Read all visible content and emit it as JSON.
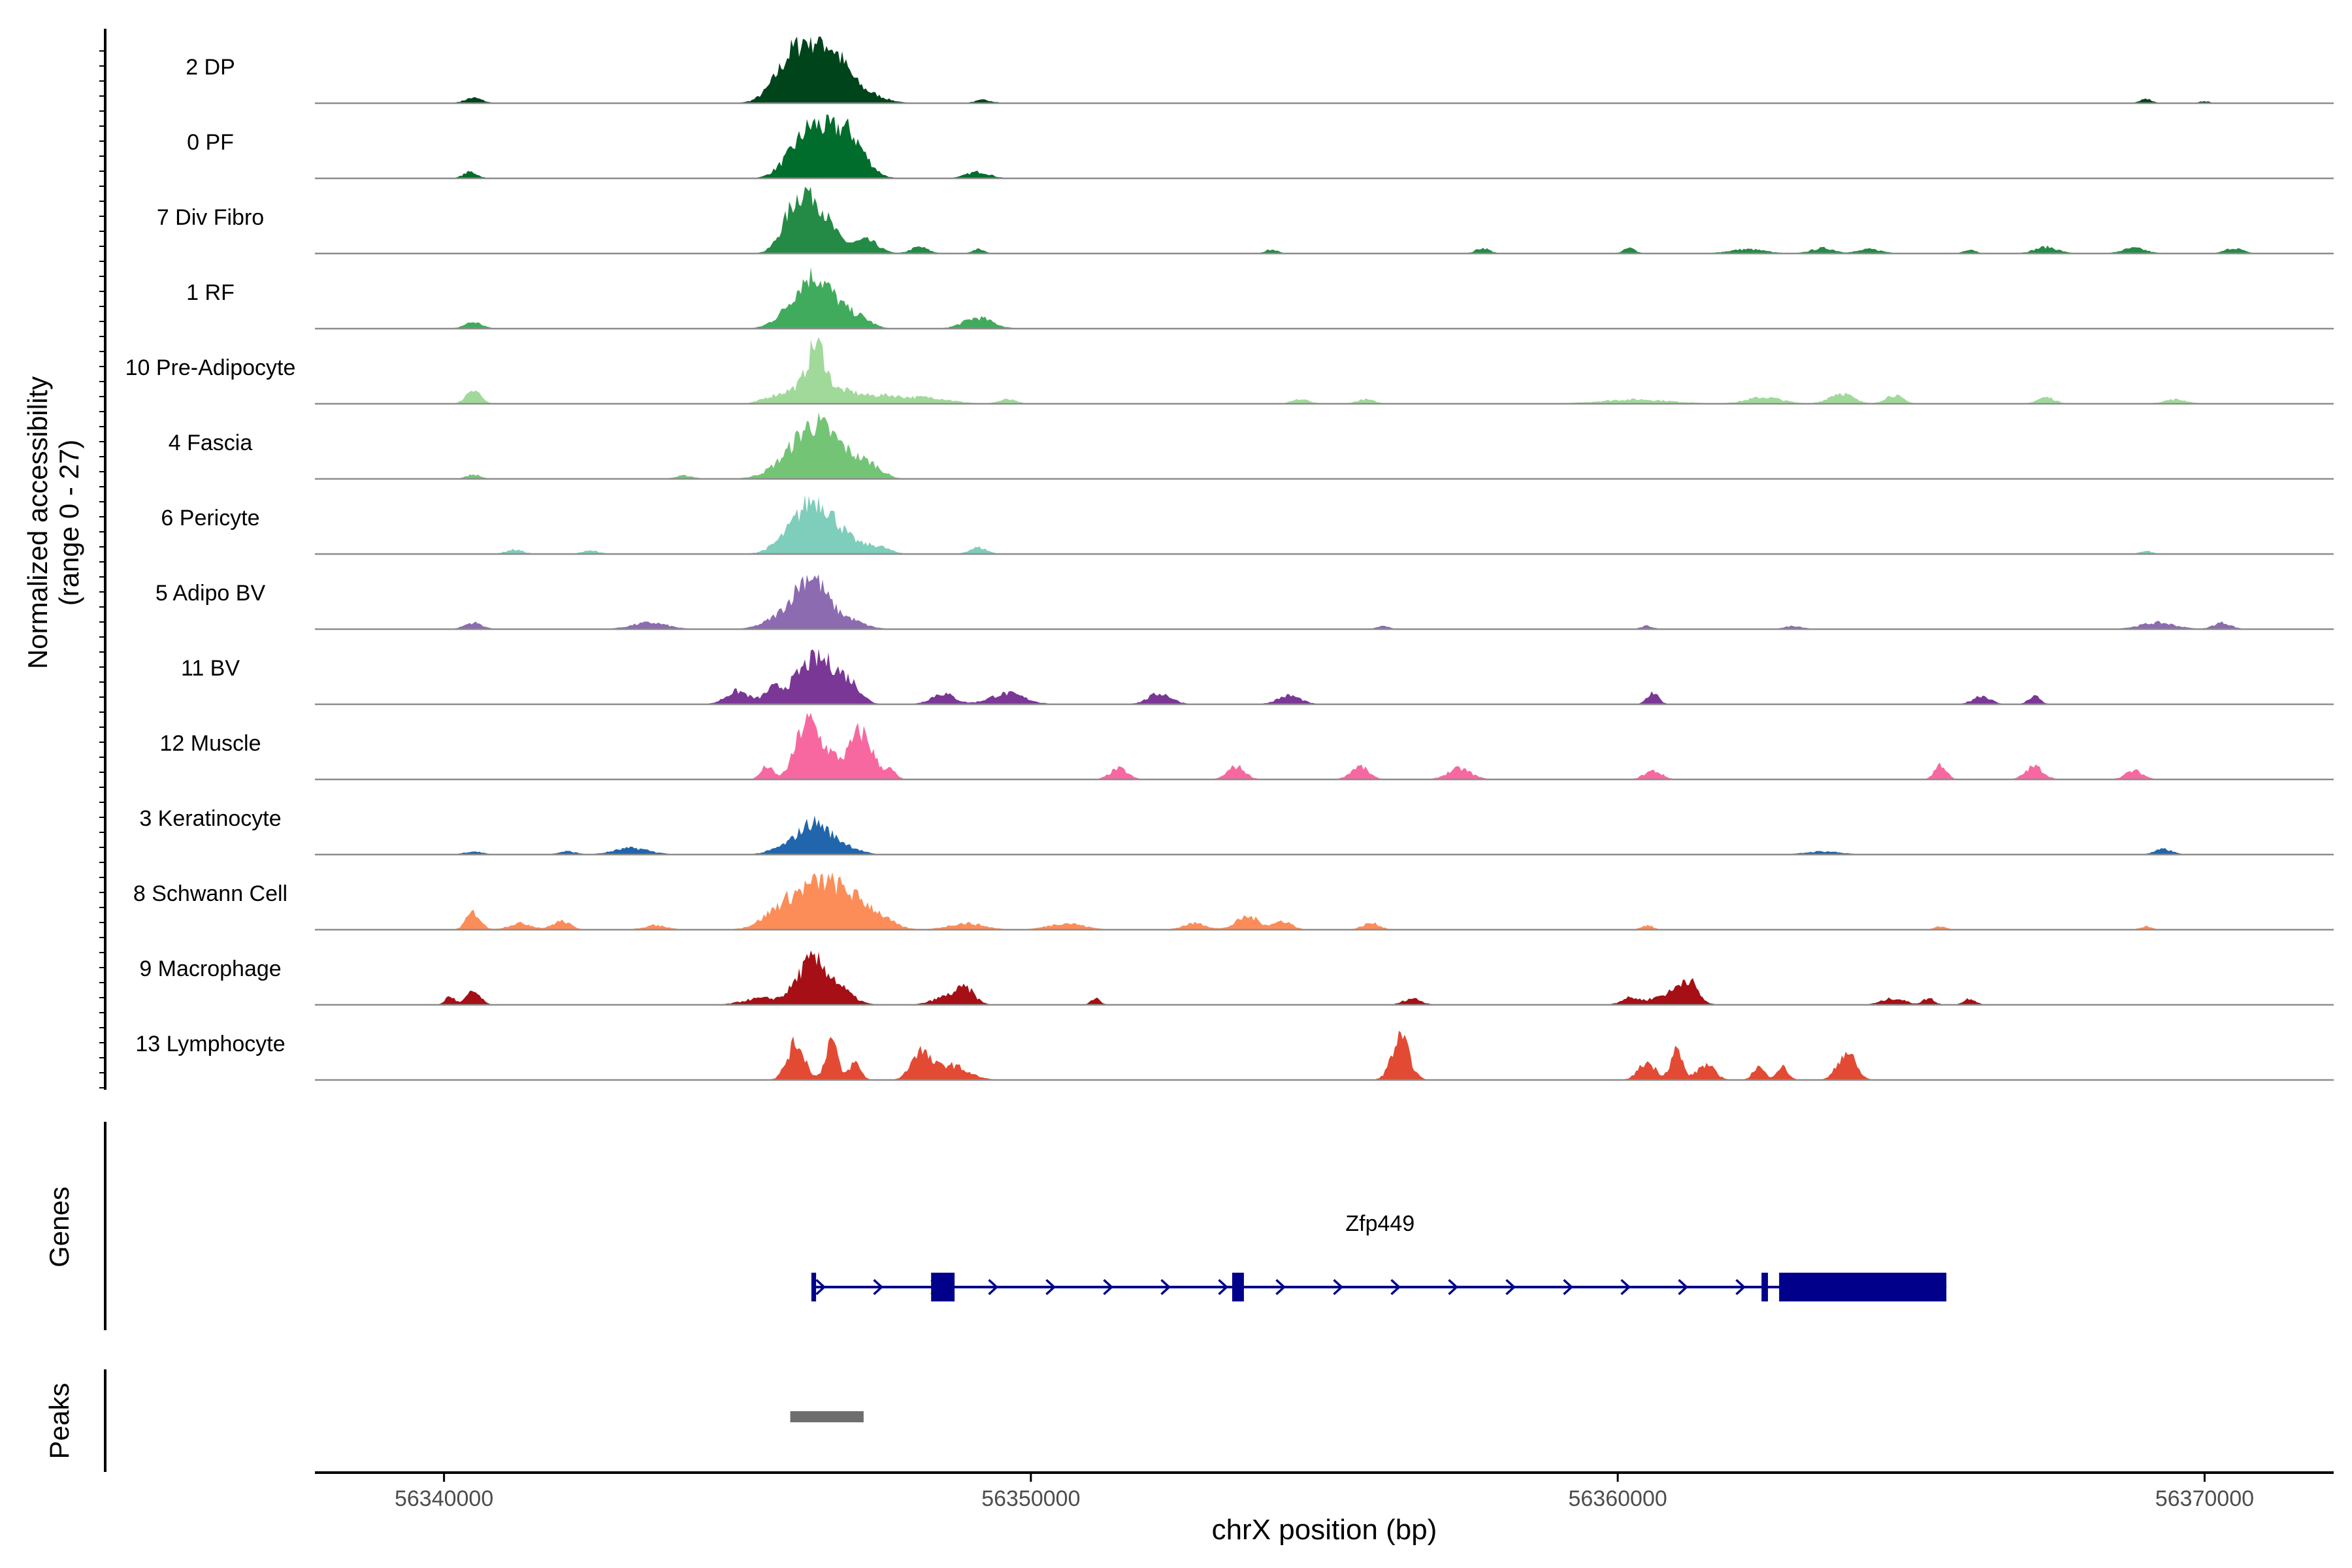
{
  "chart_data": {
    "type": "area",
    "subtype": "genome-browser coverage plot",
    "chromosome": "chrX",
    "xlim": [
      56337800,
      56372200
    ],
    "xlabel": "chrX position (bp)",
    "x_ticks": [
      56340000,
      56350000,
      56360000,
      56370000
    ],
    "x_tick_labels": [
      "56340000",
      "56350000",
      "56360000",
      "56370000"
    ],
    "ylabel_line1": "Normalized accessibility",
    "ylabel_line2": "(range 0 - 27)",
    "ylim": [
      0,
      27
    ],
    "panel_labels": {
      "genes": "Genes",
      "peaks": "Peaks"
    },
    "tracks": [
      {
        "name": "2 DP",
        "color": "#00441b",
        "peaks": [
          [
            56346220,
            27,
            380
          ],
          [
            56346700,
            10,
            250
          ],
          [
            56345800,
            5,
            250
          ],
          [
            56347200,
            4,
            300
          ],
          [
            56340500,
            2.5,
            150
          ],
          [
            56349200,
            1.5,
            150
          ],
          [
            56369000,
            2,
            100
          ],
          [
            56370000,
            1,
            80
          ]
        ]
      },
      {
        "name": "0 PF",
        "color": "#006d2c",
        "peaks": [
          [
            56346300,
            24,
            300
          ],
          [
            56347000,
            12,
            250
          ],
          [
            56346800,
            9,
            200
          ],
          [
            56349100,
            3,
            200
          ],
          [
            56340450,
            3,
            120
          ],
          [
            56345800,
            3,
            200
          ]
        ]
      },
      {
        "name": "7 Div Fibro",
        "color": "#238b45",
        "peaks": [
          [
            56346250,
            26,
            250
          ],
          [
            56345900,
            11,
            200
          ],
          [
            56346700,
            4,
            200
          ],
          [
            56347200,
            6,
            200
          ],
          [
            56348100,
            3,
            150
          ],
          [
            56349100,
            2,
            100
          ],
          [
            56354100,
            2,
            100
          ],
          [
            56357700,
            2.5,
            120
          ],
          [
            56360200,
            2.5,
            100
          ],
          [
            56362200,
            2,
            300
          ],
          [
            56363500,
            2.5,
            200
          ],
          [
            56364300,
            2,
            200
          ],
          [
            56366000,
            2,
            100
          ],
          [
            56367300,
            3,
            200
          ],
          [
            56368800,
            2.5,
            200
          ],
          [
            56370500,
            2.5,
            150
          ]
        ]
      },
      {
        "name": "1 RF",
        "color": "#41ab5d",
        "peaks": [
          [
            56346250,
            23,
            300
          ],
          [
            56346700,
            6,
            250
          ],
          [
            56347100,
            4,
            200
          ],
          [
            56349100,
            5,
            250
          ],
          [
            56340500,
            3,
            150
          ],
          [
            56345700,
            2,
            200
          ]
        ]
      },
      {
        "name": "10 Pre-Adipocyte",
        "color": "#a1d99b",
        "peaks": [
          [
            56346350,
            25,
            150
          ],
          [
            56346000,
            6,
            200
          ],
          [
            56346800,
            6,
            300
          ],
          [
            56340500,
            7,
            120
          ],
          [
            56345600,
            3,
            200
          ],
          [
            56347500,
            3,
            250
          ],
          [
            56348200,
            3,
            400
          ],
          [
            56349600,
            2,
            150
          ],
          [
            56354600,
            2,
            150
          ],
          [
            56355700,
            2,
            150
          ],
          [
            56360300,
            2,
            600
          ],
          [
            56362500,
            3,
            300
          ],
          [
            56363800,
            5,
            200
          ],
          [
            56364700,
            4,
            150
          ],
          [
            56367300,
            3,
            150
          ],
          [
            56369500,
            2,
            200
          ]
        ]
      },
      {
        "name": "4 Fascia",
        "color": "#74c476",
        "peaks": [
          [
            56346300,
            24,
            350
          ],
          [
            56346900,
            7,
            300
          ],
          [
            56347300,
            4,
            200
          ],
          [
            56345700,
            3,
            300
          ],
          [
            56340500,
            2,
            120
          ],
          [
            56344100,
            1.5,
            150
          ]
        ]
      },
      {
        "name": "6 Pericyte",
        "color": "#7fcdbb",
        "peaks": [
          [
            56346300,
            23,
            300
          ],
          [
            56346800,
            6,
            300
          ],
          [
            56347400,
            3,
            200
          ],
          [
            56345800,
            4,
            250
          ],
          [
            56349100,
            3,
            150
          ],
          [
            56341200,
            2,
            150
          ],
          [
            56342500,
            1.5,
            150
          ],
          [
            56369000,
            1.5,
            100
          ]
        ]
      },
      {
        "name": "5 Adipo BV",
        "color": "#8c6bb1",
        "peaks": [
          [
            56346250,
            22,
            250
          ],
          [
            56345800,
            6,
            300
          ],
          [
            56346800,
            5,
            300
          ],
          [
            56340500,
            3,
            150
          ],
          [
            56343500,
            3,
            300
          ],
          [
            56369200,
            3,
            300
          ],
          [
            56370300,
            3,
            150
          ],
          [
            56356000,
            1.5,
            100
          ],
          [
            56360500,
            1.5,
            100
          ],
          [
            56363000,
            1.5,
            150
          ]
        ]
      },
      {
        "name": "11 BV",
        "color": "#7a3796",
        "peaks": [
          [
            56346250,
            18,
            300
          ],
          [
            56346700,
            10,
            250
          ],
          [
            56345600,
            6,
            150
          ],
          [
            56345000,
            6,
            200
          ],
          [
            56347000,
            4,
            150
          ],
          [
            56348500,
            5,
            200
          ],
          [
            56349600,
            5,
            300
          ],
          [
            56352200,
            5,
            200
          ],
          [
            56354400,
            4,
            200
          ],
          [
            56360600,
            5,
            100
          ],
          [
            56366200,
            4,
            150
          ],
          [
            56367100,
            4,
            100
          ]
        ]
      },
      {
        "name": "12 Muscle",
        "color": "#f768a1",
        "peaks": [
          [
            56346200,
            27,
            200
          ],
          [
            56347100,
            22,
            200
          ],
          [
            56346600,
            8,
            150
          ],
          [
            56345500,
            6,
            100
          ],
          [
            56347600,
            4,
            100
          ],
          [
            56351500,
            5,
            150
          ],
          [
            56353500,
            6,
            150
          ],
          [
            56355600,
            6,
            150
          ],
          [
            56357300,
            5,
            200
          ],
          [
            56360600,
            4,
            150
          ],
          [
            56365500,
            7,
            100
          ],
          [
            56367100,
            6,
            150
          ],
          [
            56368800,
            4,
            150
          ]
        ]
      },
      {
        "name": "3 Keratinocyte",
        "color": "#2166ac",
        "peaks": [
          [
            56346300,
            14,
            250
          ],
          [
            56346800,
            4,
            250
          ],
          [
            56345800,
            3,
            250
          ],
          [
            56343200,
            3,
            300
          ],
          [
            56340500,
            1.5,
            150
          ],
          [
            56342100,
            1.5,
            150
          ],
          [
            56369300,
            2.5,
            150
          ],
          [
            56363500,
            1.5,
            300
          ]
        ]
      },
      {
        "name": "8 Schwann Cell",
        "color": "#fc8d59",
        "peaks": [
          [
            56346300,
            17,
            400
          ],
          [
            56346800,
            10,
            350
          ],
          [
            56347300,
            6,
            300
          ],
          [
            56345700,
            6,
            300
          ],
          [
            56340500,
            8,
            120
          ],
          [
            56341300,
            3,
            200
          ],
          [
            56342000,
            4,
            150
          ],
          [
            56343600,
            2,
            200
          ],
          [
            56348900,
            3,
            300
          ],
          [
            56350600,
            3,
            300
          ],
          [
            56352800,
            3,
            200
          ],
          [
            56353700,
            6,
            200
          ],
          [
            56354300,
            4,
            150
          ],
          [
            56355800,
            3,
            150
          ],
          [
            56360500,
            2,
            100
          ],
          [
            56365500,
            1.5,
            100
          ],
          [
            56369000,
            1.5,
            100
          ]
        ]
      },
      {
        "name": "9 Macrophage",
        "color": "#a50f15",
        "peaks": [
          [
            56346250,
            19,
            250
          ],
          [
            56346700,
            7,
            250
          ],
          [
            56345400,
            3,
            300
          ],
          [
            56340500,
            6,
            120
          ],
          [
            56340100,
            4,
            80
          ],
          [
            56348600,
            4,
            250
          ],
          [
            56348900,
            6,
            150
          ],
          [
            56351100,
            3,
            80
          ],
          [
            56356500,
            3,
            150
          ],
          [
            56360200,
            3,
            150
          ],
          [
            56360900,
            5,
            300
          ],
          [
            56361200,
            9,
            150
          ],
          [
            56364700,
            3,
            200
          ],
          [
            56365300,
            3,
            100
          ],
          [
            56366000,
            3,
            100
          ]
        ]
      },
      {
        "name": "13 Lymphocyte",
        "color": "#e34a33",
        "peaks": [
          [
            56346000,
            17,
            150
          ],
          [
            56346600,
            19,
            100
          ],
          [
            56347000,
            8,
            100
          ],
          [
            56348100,
            12,
            150
          ],
          [
            56348600,
            7,
            300
          ],
          [
            56356300,
            19,
            150
          ],
          [
            56360500,
            8,
            150
          ],
          [
            56361000,
            14,
            100
          ],
          [
            56361500,
            7,
            150
          ],
          [
            56362400,
            6,
            100
          ],
          [
            56362800,
            6,
            100
          ],
          [
            56363900,
            13,
            150
          ]
        ]
      }
    ],
    "gene": {
      "name": "Zfp449",
      "strand": "+",
      "start": 56346300,
      "end": 56365600,
      "color": "#00008b",
      "exons": [
        [
          56346260,
          56346340
        ],
        [
          56348300,
          56348700
        ],
        [
          56353430,
          56353630
        ],
        [
          56362450,
          56362560
        ],
        [
          56362750,
          56365600
        ]
      ]
    },
    "peaks_track": {
      "color": "#6e6e6e",
      "regions": [
        [
          56345900,
          56347150
        ]
      ]
    }
  }
}
